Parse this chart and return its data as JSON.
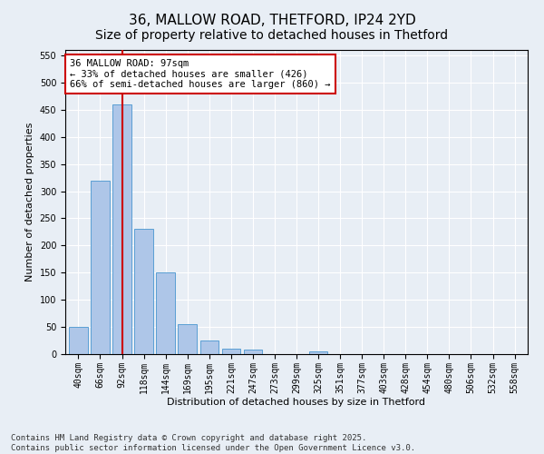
{
  "title": "36, MALLOW ROAD, THETFORD, IP24 2YD",
  "subtitle": "Size of property relative to detached houses in Thetford",
  "xlabel": "Distribution of detached houses by size in Thetford",
  "ylabel": "Number of detached properties",
  "categories": [
    "40sqm",
    "66sqm",
    "92sqm",
    "118sqm",
    "144sqm",
    "169sqm",
    "195sqm",
    "221sqm",
    "247sqm",
    "273sqm",
    "299sqm",
    "325sqm",
    "351sqm",
    "377sqm",
    "403sqm",
    "428sqm",
    "454sqm",
    "480sqm",
    "506sqm",
    "532sqm",
    "558sqm"
  ],
  "values": [
    50,
    320,
    460,
    230,
    150,
    55,
    25,
    10,
    8,
    0,
    0,
    5,
    0,
    0,
    0,
    0,
    0,
    0,
    0,
    0,
    0
  ],
  "bar_color": "#aec6e8",
  "bar_edge_color": "#5a9fd4",
  "vline_x": 2,
  "vline_color": "#cc0000",
  "annotation_text": "36 MALLOW ROAD: 97sqm\n← 33% of detached houses are smaller (426)\n66% of semi-detached houses are larger (860) →",
  "annotation_box_color": "#ffffff",
  "annotation_box_edge": "#cc0000",
  "ylim": [
    0,
    560
  ],
  "yticks": [
    0,
    50,
    100,
    150,
    200,
    250,
    300,
    350,
    400,
    450,
    500,
    550
  ],
  "background_color": "#e8eef5",
  "footer_line1": "Contains HM Land Registry data © Crown copyright and database right 2025.",
  "footer_line2": "Contains public sector information licensed under the Open Government Licence v3.0.",
  "title_fontsize": 11,
  "xlabel_fontsize": 8,
  "ylabel_fontsize": 8,
  "tick_fontsize": 7,
  "annot_fontsize": 7.5,
  "footer_fontsize": 6.5
}
